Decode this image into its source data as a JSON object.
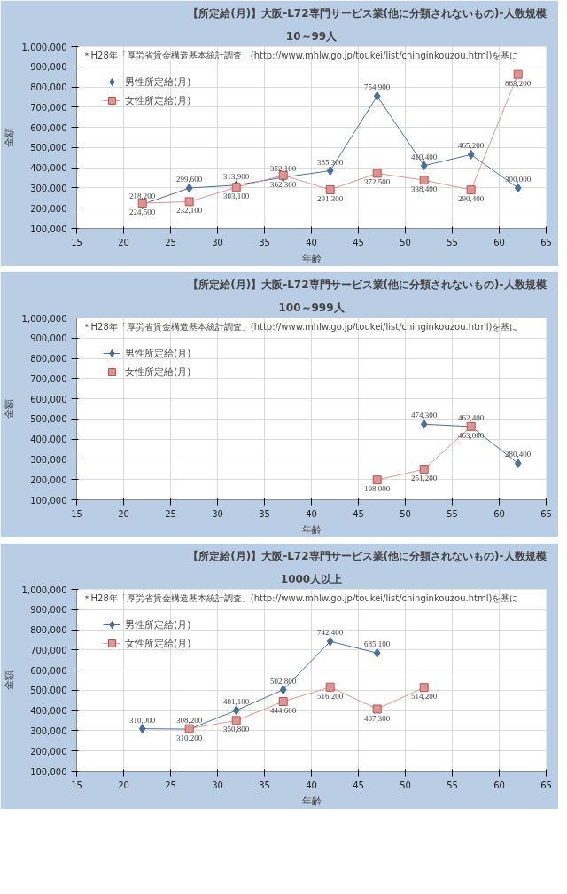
{
  "chart_data": [
    {
      "type": "line",
      "title": "【所定給(月)】大阪-L72専門サービス業(他に分類されないもの)-人数規模",
      "subtitle": "10～99人",
      "xlabel": "年齢",
      "ylabel": "金額",
      "annotations": [
        "＊H28年「厚労省賃金構造基本統計調査」(http://www.mhlw.go.jp/toukei/list/chinginkouzou.html)を基に"
      ],
      "x": [
        22,
        27,
        32,
        37,
        42,
        47,
        52,
        57,
        62
      ],
      "xlim": [
        15,
        65
      ],
      "xticks": [
        15,
        20,
        25,
        30,
        35,
        40,
        45,
        50,
        55,
        60,
        65
      ],
      "ylim": [
        100000,
        1000000
      ],
      "yticks": [
        {
          "value": 100000,
          "label": "100,000"
        },
        {
          "value": 200000,
          "label": "200,000"
        },
        {
          "value": 300000,
          "label": "300,000"
        },
        {
          "value": 400000,
          "label": "400,000"
        },
        {
          "value": 500000,
          "label": "500,000"
        },
        {
          "value": 600000,
          "label": "600,000"
        },
        {
          "value": 700000,
          "label": "700,000"
        },
        {
          "value": 800000,
          "label": "800,000"
        },
        {
          "value": 900000,
          "label": "900,000"
        },
        {
          "value": 1000000,
          "label": "1,000,000"
        }
      ],
      "grid": true,
      "legend": "top left",
      "series": [
        {
          "name": "男性所定給(月)",
          "color": "#4a6f96",
          "marker": "diamond",
          "values": [
            218200,
            299600,
            313900,
            352100,
            385300,
            754900,
            410400,
            465200,
            300000
          ],
          "value_labels": [
            "218,200",
            "299,600",
            "313,900",
            "352,100",
            "385,300",
            "754,900",
            "410,400",
            "465,200",
            "300,000"
          ]
        },
        {
          "name": "女性所定給(月)",
          "color": "#d99694",
          "marker": "square",
          "values": [
            224500,
            232100,
            303100,
            362300,
            291300,
            372500,
            338400,
            290400,
            863200
          ],
          "value_labels": [
            "224,500",
            "232,100",
            "303,100",
            "362,300",
            "291,300",
            "372,500",
            "338,400",
            "290,400",
            "863,200"
          ]
        }
      ]
    },
    {
      "type": "line",
      "title": "【所定給(月)】大阪-L72専門サービス業(他に分類されないもの)-人数規模",
      "subtitle": "100～999人",
      "xlabel": "年齢",
      "ylabel": "金額",
      "annotations": [
        "＊H28年「厚労省賃金構造基本統計調査」(http://www.mhlw.go.jp/toukei/list/chinginkouzou.html)を基に"
      ],
      "xlim": [
        15,
        65
      ],
      "xticks": [
        15,
        20,
        25,
        30,
        35,
        40,
        45,
        50,
        55,
        60,
        65
      ],
      "ylim": [
        100000,
        1000000
      ],
      "yticks": [
        {
          "value": 100000,
          "label": "100,000"
        },
        {
          "value": 200000,
          "label": "200,000"
        },
        {
          "value": 300000,
          "label": "300,000"
        },
        {
          "value": 400000,
          "label": "400,000"
        },
        {
          "value": 500000,
          "label": "500,000"
        },
        {
          "value": 600000,
          "label": "600,000"
        },
        {
          "value": 700000,
          "label": "700,000"
        },
        {
          "value": 800000,
          "label": "800,000"
        },
        {
          "value": 900000,
          "label": "900,000"
        },
        {
          "value": 1000000,
          "label": "1,000,000"
        }
      ],
      "grid": true,
      "legend": "top left",
      "series": [
        {
          "name": "男性所定給(月)",
          "color": "#4a6f96",
          "marker": "diamond",
          "x": [
            52,
            57,
            62
          ],
          "values": [
            474300,
            462400,
            280400
          ],
          "value_labels": [
            "474,300",
            "462,400",
            "280,400"
          ]
        },
        {
          "name": "女性所定給(月)",
          "color": "#d99694",
          "marker": "square",
          "x": [
            47,
            52,
            57
          ],
          "values": [
            198000,
            251200,
            463000
          ],
          "value_labels": [
            "198,000",
            "251,200",
            "463,000"
          ]
        }
      ]
    },
    {
      "type": "line",
      "title": "【所定給(月)】大阪-L72専門サービス業(他に分類されないもの)-人数規模",
      "subtitle": "1000人以上",
      "xlabel": "年齢",
      "ylabel": "金額",
      "annotations": [
        "＊H28年「厚労省賃金構造基本統計調査」(http://www.mhlw.go.jp/toukei/list/chinginkouzou.html)を基に"
      ],
      "xlim": [
        15,
        65
      ],
      "xticks": [
        15,
        20,
        25,
        30,
        35,
        40,
        45,
        50,
        55,
        60,
        65
      ],
      "ylim": [
        100000,
        1000000
      ],
      "yticks": [
        {
          "value": 100000,
          "label": "100,000"
        },
        {
          "value": 200000,
          "label": "200,000"
        },
        {
          "value": 300000,
          "label": "300,000"
        },
        {
          "value": 400000,
          "label": "400,000"
        },
        {
          "value": 500000,
          "label": "500,000"
        },
        {
          "value": 600000,
          "label": "600,000"
        },
        {
          "value": 700000,
          "label": "700,000"
        },
        {
          "value": 800000,
          "label": "800,000"
        },
        {
          "value": 900000,
          "label": "900,000"
        },
        {
          "value": 1000000,
          "label": "1,000,000"
        }
      ],
      "grid": true,
      "legend": "top left",
      "series": [
        {
          "name": "男性所定給(月)",
          "color": "#4a6f96",
          "marker": "diamond",
          "x": [
            22,
            27,
            32,
            37,
            42,
            47
          ],
          "values": [
            310000,
            308200,
            401100,
            502800,
            742400,
            685100
          ],
          "value_labels": [
            "310,000",
            "308,200",
            "401,100",
            "502,800",
            "742,400",
            "685,100"
          ]
        },
        {
          "name": "女性所定給(月)",
          "color": "#d99694",
          "marker": "square",
          "x": [
            27,
            32,
            37,
            42,
            47,
            52
          ],
          "values": [
            310200,
            350800,
            444600,
            516200,
            407300,
            514200
          ],
          "value_labels": [
            "310,200",
            "350,800",
            "444,600",
            "516,200",
            "407,300",
            "514,200"
          ]
        }
      ]
    }
  ]
}
